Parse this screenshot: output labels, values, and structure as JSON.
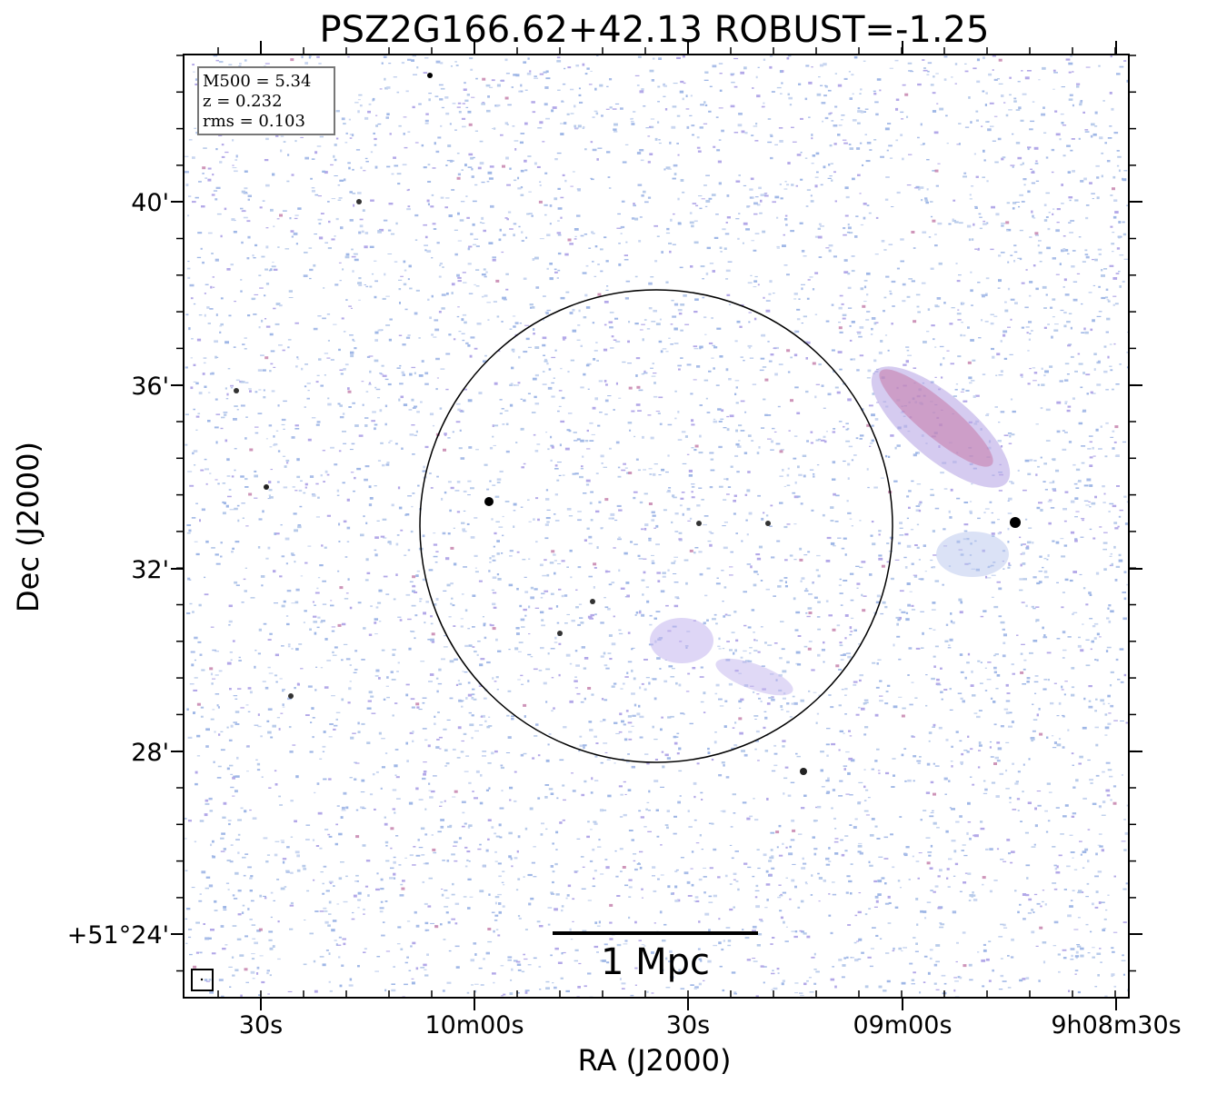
{
  "title": "PSZ2G166.62+42.13 ROBUST=-1.25",
  "x_axis": {
    "label": "RA (J2000)",
    "ticks": [
      "30s",
      "10m00s",
      "30s",
      "09m00s",
      "9h08m30s"
    ]
  },
  "y_axis": {
    "label": "Dec (J2000)",
    "ticks": [
      "40'",
      "36'",
      "32'",
      "28'",
      "+51°24'"
    ]
  },
  "info": [
    "M500 = 5.34",
    "z = 0.232",
    "rms = 0.103"
  ],
  "scale_bar": "1 Mpc"
}
